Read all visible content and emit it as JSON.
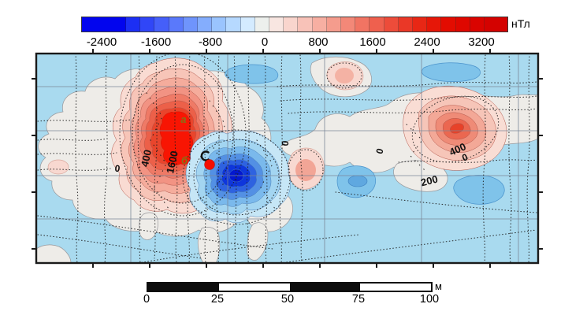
{
  "colorbar": {
    "unit": "нТл",
    "tick_labels": [
      "-2400",
      "-1600",
      "-800",
      "0",
      "800",
      "1600",
      "2400",
      "3200"
    ],
    "segment_colors": [
      "#0205ee",
      "#1c2ff4",
      "#3046f7",
      "#455ff9",
      "#5a79fb",
      "#6f94fc",
      "#84adfd",
      "#9ac4fe",
      "#b6d9ff",
      "#d4ebff",
      "#edf0ed",
      "#f8e6e1",
      "#f9d5cd",
      "#f8c2b8",
      "#f7afa2",
      "#f59c8d",
      "#f38878",
      "#f17463",
      "#ef604e",
      "#ed4c3a",
      "#ea3827",
      "#e82715",
      "#e61708",
      "#e30c01",
      "#df0700",
      "#da0400",
      "#d40200"
    ]
  },
  "map": {
    "point_labels": [
      {
        "text": "а",
        "color": "#857316"
      },
      {
        "text": "б",
        "color": "#857316"
      },
      {
        "text": "в",
        "color": "#2b47cb"
      }
    ],
    "contour_labels": [
      {
        "text": "0"
      },
      {
        "text": "400"
      },
      {
        "text": "1600"
      },
      {
        "text": "0"
      },
      {
        "text": "0"
      },
      {
        "text": "400"
      },
      {
        "text": "0"
      },
      {
        "text": "200"
      }
    ],
    "palette": {
      "sea_background": "#a9daef",
      "neutral_region": "#eeece8",
      "positive_core": "#f81503",
      "negative_core": "#0318cf",
      "marker_dot": "#f50d00"
    }
  },
  "scalebar": {
    "tick_labels": [
      "0",
      "25",
      "50",
      "75",
      "100"
    ],
    "unit": "м"
  },
  "chart_data": {
    "type": "heatmap",
    "subtype": "filled-contour magnetic anomaly map",
    "unit": "нТл",
    "colorbar_ticks": [
      -2400,
      -1600,
      -800,
      0,
      800,
      1600,
      2400,
      3200
    ],
    "colorbar_style": "discrete blue-white-red cells, wide saturated end cells",
    "labeled_contour_levels": [
      0,
      200,
      400,
      1600
    ],
    "anomalies": [
      {
        "label": "а",
        "sign": "positive",
        "note": "upper lobe of large red anomaly, inside 1600 contour"
      },
      {
        "label": "б",
        "sign": "positive",
        "note": "lower lobe of large red anomaly, inside 1600 contour"
      },
      {
        "label": "в",
        "sign": "negative",
        "note": "deep blue minimum right of red anomaly"
      },
      {
        "label": null,
        "sign": "positive",
        "note": "secondary red maximum at map right, inside 400 contour"
      }
    ],
    "marker": {
      "shape": "filled red circle",
      "location": "between lobes б and в"
    },
    "grid": true,
    "scale_bar": {
      "unit": "м",
      "ticks": [
        0,
        25,
        50,
        75,
        100
      ],
      "segments": "alternating black/white every 25 м"
    }
  }
}
